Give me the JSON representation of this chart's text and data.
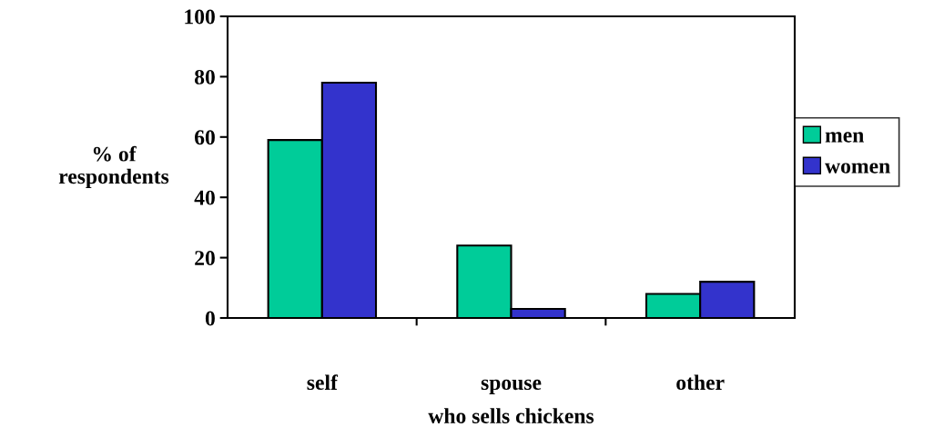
{
  "chart_data": {
    "type": "bar",
    "xlabel": "who sells chickens",
    "ylabel": "% of\nrespondents",
    "categories": [
      "self",
      "spouse",
      "other"
    ],
    "series": [
      {
        "name": "men",
        "color": "#00cc99",
        "values": [
          59,
          24,
          8
        ]
      },
      {
        "name": "women",
        "color": "#3333cc",
        "values": [
          78,
          3,
          12
        ]
      }
    ],
    "ylim": [
      0,
      100
    ],
    "yticks": [
      0,
      20,
      40,
      60,
      80,
      100
    ],
    "grid": false,
    "legend": "right"
  }
}
